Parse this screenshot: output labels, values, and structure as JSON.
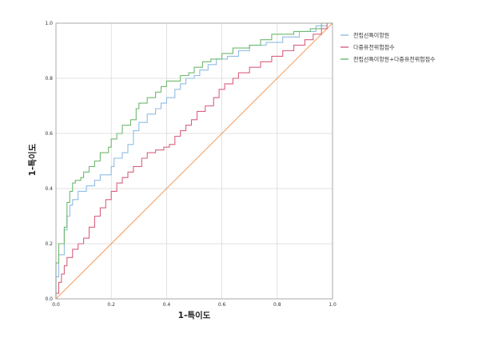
{
  "chart_data": {
    "type": "line",
    "xlabel": "1-특이도",
    "ylabel": "1-특이도",
    "xlim": [
      0,
      1
    ],
    "ylim": [
      0,
      1
    ],
    "x_ticks": [
      "0.0",
      "0.2",
      "0.4",
      "0.6",
      "0.8",
      "1.0"
    ],
    "y_ticks": [
      "0.0",
      "0.2",
      "0.4",
      "0.6",
      "0.8",
      "1.0"
    ],
    "grid": true,
    "legend_position": "top-right",
    "series": [
      {
        "name": "전립선특이항원",
        "color": "#8fbde3",
        "points": [
          [
            0,
            0
          ],
          [
            0,
            0.08
          ],
          [
            0.01,
            0.08
          ],
          [
            0.01,
            0.16
          ],
          [
            0.03,
            0.16
          ],
          [
            0.03,
            0.25
          ],
          [
            0.04,
            0.25
          ],
          [
            0.04,
            0.3
          ],
          [
            0.05,
            0.3
          ],
          [
            0.05,
            0.34
          ],
          [
            0.06,
            0.34
          ],
          [
            0.06,
            0.36
          ],
          [
            0.08,
            0.36
          ],
          [
            0.08,
            0.39
          ],
          [
            0.11,
            0.39
          ],
          [
            0.11,
            0.41
          ],
          [
            0.14,
            0.41
          ],
          [
            0.14,
            0.43
          ],
          [
            0.16,
            0.43
          ],
          [
            0.16,
            0.45
          ],
          [
            0.2,
            0.45
          ],
          [
            0.2,
            0.48
          ],
          [
            0.21,
            0.48
          ],
          [
            0.21,
            0.51
          ],
          [
            0.24,
            0.51
          ],
          [
            0.24,
            0.53
          ],
          [
            0.26,
            0.53
          ],
          [
            0.26,
            0.56
          ],
          [
            0.28,
            0.56
          ],
          [
            0.28,
            0.61
          ],
          [
            0.3,
            0.61
          ],
          [
            0.3,
            0.64
          ],
          [
            0.33,
            0.64
          ],
          [
            0.33,
            0.67
          ],
          [
            0.36,
            0.67
          ],
          [
            0.36,
            0.69
          ],
          [
            0.38,
            0.69
          ],
          [
            0.38,
            0.71
          ],
          [
            0.4,
            0.71
          ],
          [
            0.4,
            0.73
          ],
          [
            0.43,
            0.73
          ],
          [
            0.43,
            0.76
          ],
          [
            0.45,
            0.76
          ],
          [
            0.45,
            0.78
          ],
          [
            0.47,
            0.78
          ],
          [
            0.47,
            0.8
          ],
          [
            0.5,
            0.8
          ],
          [
            0.5,
            0.81
          ],
          [
            0.52,
            0.81
          ],
          [
            0.52,
            0.83
          ],
          [
            0.55,
            0.83
          ],
          [
            0.55,
            0.85
          ],
          [
            0.58,
            0.85
          ],
          [
            0.58,
            0.87
          ],
          [
            0.62,
            0.87
          ],
          [
            0.62,
            0.88
          ],
          [
            0.66,
            0.88
          ],
          [
            0.66,
            0.9
          ],
          [
            0.7,
            0.9
          ],
          [
            0.7,
            0.92
          ],
          [
            0.76,
            0.92
          ],
          [
            0.76,
            0.93
          ],
          [
            0.82,
            0.93
          ],
          [
            0.82,
            0.95
          ],
          [
            0.88,
            0.95
          ],
          [
            0.88,
            0.97
          ],
          [
            0.94,
            0.97
          ],
          [
            0.94,
            0.99
          ],
          [
            0.98,
            0.99
          ],
          [
            0.98,
            1.0
          ],
          [
            1.0,
            1.0
          ]
        ]
      },
      {
        "name": "다중유전위험점수",
        "color": "#d9617f",
        "points": [
          [
            0,
            0
          ],
          [
            0,
            0.02
          ],
          [
            0.01,
            0.02
          ],
          [
            0.01,
            0.06
          ],
          [
            0.02,
            0.06
          ],
          [
            0.02,
            0.09
          ],
          [
            0.03,
            0.09
          ],
          [
            0.03,
            0.12
          ],
          [
            0.04,
            0.12
          ],
          [
            0.04,
            0.15
          ],
          [
            0.06,
            0.15
          ],
          [
            0.06,
            0.18
          ],
          [
            0.08,
            0.18
          ],
          [
            0.08,
            0.2
          ],
          [
            0.1,
            0.2
          ],
          [
            0.1,
            0.22
          ],
          [
            0.12,
            0.22
          ],
          [
            0.12,
            0.26
          ],
          [
            0.14,
            0.26
          ],
          [
            0.14,
            0.3
          ],
          [
            0.16,
            0.3
          ],
          [
            0.16,
            0.33
          ],
          [
            0.18,
            0.33
          ],
          [
            0.18,
            0.36
          ],
          [
            0.2,
            0.36
          ],
          [
            0.2,
            0.39
          ],
          [
            0.22,
            0.39
          ],
          [
            0.22,
            0.42
          ],
          [
            0.24,
            0.42
          ],
          [
            0.24,
            0.44
          ],
          [
            0.26,
            0.44
          ],
          [
            0.26,
            0.46
          ],
          [
            0.28,
            0.46
          ],
          [
            0.28,
            0.48
          ],
          [
            0.31,
            0.48
          ],
          [
            0.31,
            0.51
          ],
          [
            0.33,
            0.51
          ],
          [
            0.33,
            0.53
          ],
          [
            0.36,
            0.53
          ],
          [
            0.36,
            0.54
          ],
          [
            0.39,
            0.54
          ],
          [
            0.39,
            0.55
          ],
          [
            0.41,
            0.55
          ],
          [
            0.41,
            0.56
          ],
          [
            0.43,
            0.56
          ],
          [
            0.43,
            0.59
          ],
          [
            0.45,
            0.59
          ],
          [
            0.45,
            0.61
          ],
          [
            0.47,
            0.61
          ],
          [
            0.47,
            0.63
          ],
          [
            0.49,
            0.63
          ],
          [
            0.49,
            0.65
          ],
          [
            0.51,
            0.65
          ],
          [
            0.51,
            0.68
          ],
          [
            0.54,
            0.68
          ],
          [
            0.54,
            0.7
          ],
          [
            0.57,
            0.7
          ],
          [
            0.57,
            0.73
          ],
          [
            0.59,
            0.73
          ],
          [
            0.59,
            0.76
          ],
          [
            0.61,
            0.76
          ],
          [
            0.61,
            0.78
          ],
          [
            0.64,
            0.78
          ],
          [
            0.64,
            0.8
          ],
          [
            0.66,
            0.8
          ],
          [
            0.66,
            0.82
          ],
          [
            0.7,
            0.82
          ],
          [
            0.7,
            0.84
          ],
          [
            0.74,
            0.84
          ],
          [
            0.74,
            0.86
          ],
          [
            0.78,
            0.86
          ],
          [
            0.78,
            0.88
          ],
          [
            0.82,
            0.88
          ],
          [
            0.82,
            0.9
          ],
          [
            0.86,
            0.9
          ],
          [
            0.86,
            0.92
          ],
          [
            0.9,
            0.92
          ],
          [
            0.9,
            0.94
          ],
          [
            0.93,
            0.94
          ],
          [
            0.93,
            0.96
          ],
          [
            0.96,
            0.96
          ],
          [
            0.96,
            0.98
          ],
          [
            0.98,
            0.98
          ],
          [
            0.98,
            1.0
          ],
          [
            1.0,
            1.0
          ]
        ]
      },
      {
        "name": "전립선특이항원+다중유전위험점수",
        "color": "#6fb96f",
        "points": [
          [
            0,
            0
          ],
          [
            0,
            0.13
          ],
          [
            0.01,
            0.13
          ],
          [
            0.01,
            0.2
          ],
          [
            0.03,
            0.2
          ],
          [
            0.03,
            0.26
          ],
          [
            0.04,
            0.26
          ],
          [
            0.04,
            0.35
          ],
          [
            0.05,
            0.35
          ],
          [
            0.05,
            0.39
          ],
          [
            0.06,
            0.39
          ],
          [
            0.06,
            0.42
          ],
          [
            0.07,
            0.42
          ],
          [
            0.07,
            0.43
          ],
          [
            0.09,
            0.43
          ],
          [
            0.09,
            0.44
          ],
          [
            0.1,
            0.44
          ],
          [
            0.1,
            0.46
          ],
          [
            0.12,
            0.46
          ],
          [
            0.12,
            0.48
          ],
          [
            0.14,
            0.48
          ],
          [
            0.14,
            0.5
          ],
          [
            0.16,
            0.5
          ],
          [
            0.16,
            0.53
          ],
          [
            0.19,
            0.53
          ],
          [
            0.19,
            0.55
          ],
          [
            0.2,
            0.55
          ],
          [
            0.2,
            0.58
          ],
          [
            0.22,
            0.58
          ],
          [
            0.22,
            0.6
          ],
          [
            0.24,
            0.6
          ],
          [
            0.24,
            0.63
          ],
          [
            0.27,
            0.63
          ],
          [
            0.27,
            0.65
          ],
          [
            0.29,
            0.65
          ],
          [
            0.29,
            0.69
          ],
          [
            0.3,
            0.69
          ],
          [
            0.3,
            0.71
          ],
          [
            0.33,
            0.71
          ],
          [
            0.33,
            0.73
          ],
          [
            0.36,
            0.73
          ],
          [
            0.36,
            0.75
          ],
          [
            0.38,
            0.75
          ],
          [
            0.38,
            0.77
          ],
          [
            0.4,
            0.77
          ],
          [
            0.4,
            0.79
          ],
          [
            0.45,
            0.79
          ],
          [
            0.45,
            0.81
          ],
          [
            0.48,
            0.81
          ],
          [
            0.48,
            0.82
          ],
          [
            0.5,
            0.82
          ],
          [
            0.5,
            0.84
          ],
          [
            0.53,
            0.84
          ],
          [
            0.53,
            0.86
          ],
          [
            0.56,
            0.86
          ],
          [
            0.56,
            0.87
          ],
          [
            0.6,
            0.87
          ],
          [
            0.6,
            0.89
          ],
          [
            0.64,
            0.89
          ],
          [
            0.64,
            0.91
          ],
          [
            0.7,
            0.91
          ],
          [
            0.7,
            0.92
          ],
          [
            0.74,
            0.92
          ],
          [
            0.74,
            0.94
          ],
          [
            0.78,
            0.94
          ],
          [
            0.78,
            0.96
          ],
          [
            0.86,
            0.96
          ],
          [
            0.86,
            0.97
          ],
          [
            0.92,
            0.97
          ],
          [
            0.92,
            0.98
          ],
          [
            0.96,
            0.98
          ],
          [
            0.96,
            1.0
          ],
          [
            1.0,
            1.0
          ]
        ]
      }
    ],
    "reference_line": {
      "color": "#f5a060",
      "points": [
        [
          0,
          0
        ],
        [
          1,
          1
        ]
      ]
    }
  }
}
